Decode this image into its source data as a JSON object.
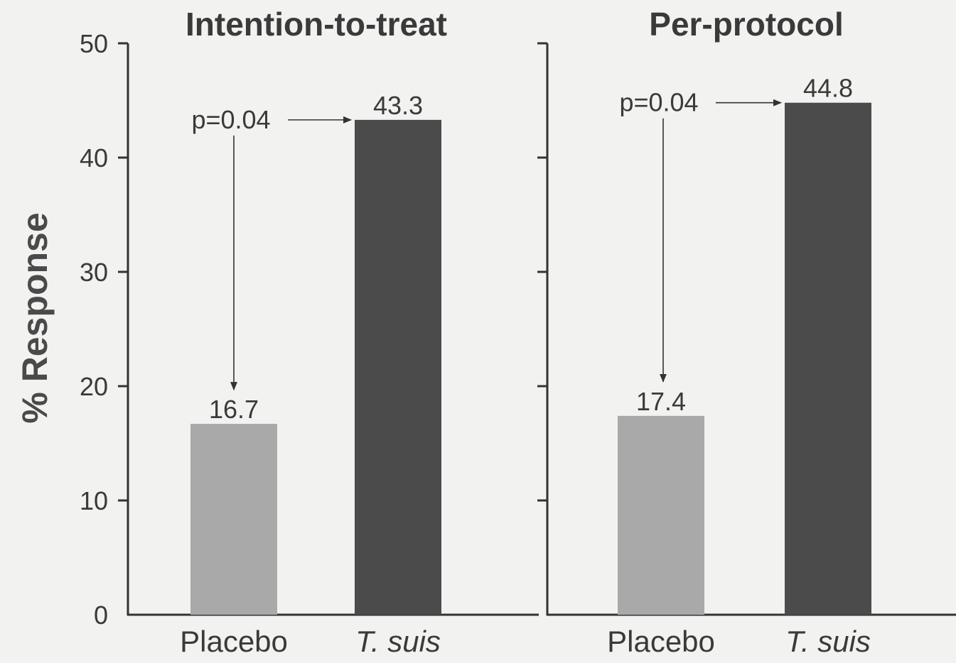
{
  "chart_data": {
    "type": "bar",
    "ylabel": "% Response",
    "ylim": [
      0,
      50
    ],
    "yticks": [
      0,
      10,
      20,
      30,
      40,
      50
    ],
    "colors": {
      "placebo": "#a9a9a9",
      "tsuis": "#4b4b4b"
    },
    "panels": [
      {
        "title": "Intention-to-treat",
        "categories": [
          "Placebo",
          "T. suis"
        ],
        "values": [
          16.7,
          43.3
        ],
        "value_labels": [
          "16.7",
          "43.3"
        ],
        "annotation": "p=0.04"
      },
      {
        "title": "Per-protocol",
        "categories": [
          "Placebo",
          "T. suis"
        ],
        "values": [
          17.4,
          44.8
        ],
        "value_labels": [
          "17.4",
          "44.8"
        ],
        "annotation": "p=0.04"
      }
    ]
  }
}
